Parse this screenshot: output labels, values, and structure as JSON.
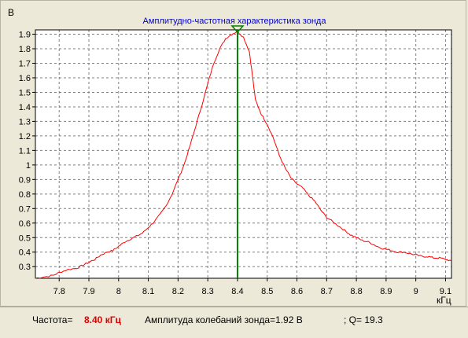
{
  "chart_data": {
    "type": "line",
    "title": "Амплитудно-частотная характеристика зонда",
    "ylabel": "В",
    "xlabel": "кГц",
    "xlim": [
      7.72,
      9.12
    ],
    "ylim": [
      0.22,
      1.93
    ],
    "x_ticks": [
      "7.8",
      "7.9",
      "8",
      "8.1",
      "8.2",
      "8.3",
      "8.4",
      "8.5",
      "8.6",
      "8.7",
      "8.8",
      "8.9",
      "9",
      "9.1"
    ],
    "y_ticks": [
      "0.3",
      "0.4",
      "0.5",
      "0.6",
      "0.7",
      "0.8",
      "0.9",
      "1",
      "1.1",
      "1.2",
      "1.3",
      "1.4",
      "1.5",
      "1.6",
      "1.7",
      "1.8",
      "1.9"
    ],
    "grid": true,
    "colors": {
      "curve": "#ff0000",
      "marker": "#008000",
      "grid": "#808080"
    },
    "marker_x": 8.4,
    "series": [
      {
        "x": [
          7.72,
          7.75,
          7.78,
          7.8,
          7.83,
          7.86,
          7.88,
          7.9,
          7.92,
          7.94,
          7.96,
          7.98,
          8.0,
          8.02,
          8.04,
          8.06,
          8.08,
          8.1,
          8.12,
          8.14,
          8.16,
          8.18,
          8.2,
          8.22,
          8.24,
          8.26,
          8.28,
          8.3,
          8.32,
          8.34,
          8.36,
          8.38,
          8.4,
          8.42,
          8.44,
          8.45,
          8.46,
          8.48,
          8.5,
          8.52,
          8.54,
          8.56,
          8.58,
          8.6,
          8.62,
          8.64,
          8.66,
          8.68,
          8.7,
          8.72,
          8.74,
          8.76,
          8.78,
          8.8,
          8.82,
          8.84,
          8.86,
          8.88,
          8.9,
          8.92,
          8.94,
          8.96,
          8.98,
          9.0,
          9.02,
          9.04,
          9.06,
          9.08,
          9.1,
          9.12
        ],
        "values": [
          0.22,
          0.23,
          0.24,
          0.26,
          0.28,
          0.29,
          0.31,
          0.33,
          0.35,
          0.38,
          0.4,
          0.41,
          0.44,
          0.47,
          0.49,
          0.51,
          0.53,
          0.57,
          0.61,
          0.66,
          0.72,
          0.8,
          0.9,
          1.0,
          1.13,
          1.27,
          1.41,
          1.56,
          1.7,
          1.8,
          1.87,
          1.9,
          1.92,
          1.88,
          1.78,
          1.62,
          1.45,
          1.35,
          1.28,
          1.19,
          1.07,
          0.98,
          0.91,
          0.87,
          0.84,
          0.79,
          0.75,
          0.69,
          0.64,
          0.61,
          0.58,
          0.55,
          0.52,
          0.5,
          0.48,
          0.47,
          0.45,
          0.43,
          0.42,
          0.41,
          0.4,
          0.4,
          0.39,
          0.38,
          0.37,
          0.37,
          0.36,
          0.36,
          0.35,
          0.34
        ]
      }
    ]
  },
  "status": {
    "freq_label": "Частота=",
    "freq_value": "8.40 кГц",
    "amp_text": "Амплитуда колебаний зонда=1.92 В",
    "q_text": "; Q= 19.3"
  }
}
